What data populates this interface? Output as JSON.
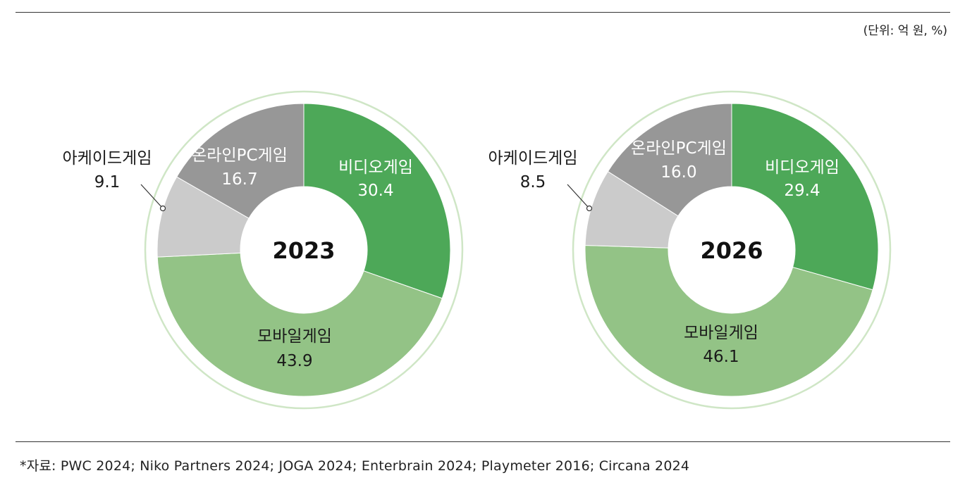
{
  "unit_note": "(단위: 억 원, %)",
  "source_note": "*자료: PWC 2024; Niko Partners 2024; JOGA 2024; Enterbrain 2024; Playmeter 2016; Circana 2024",
  "colors": {
    "video": "#4da858",
    "mobile": "#93c386",
    "arcade": "#cbcbcb",
    "online_pc": "#979797",
    "ring": "#cfe6c6",
    "label_dark": "#1a1a1a",
    "label_light": "#ffffff"
  },
  "chart_data": [
    {
      "type": "pie",
      "donut": true,
      "center_label": "2023",
      "slices": [
        {
          "key": "video",
          "label": "비디오게임",
          "value": 30.4
        },
        {
          "key": "mobile",
          "label": "모바일게임",
          "value": 43.9
        },
        {
          "key": "arcade",
          "label": "아케이드게임",
          "value": 9.1
        },
        {
          "key": "online_pc",
          "label": "온라인PC게임",
          "value": 16.7
        }
      ]
    },
    {
      "type": "pie",
      "donut": true,
      "center_label": "2026",
      "slices": [
        {
          "key": "video",
          "label": "비디오게임",
          "value": 29.4
        },
        {
          "key": "mobile",
          "label": "모바일게임",
          "value": 46.1
        },
        {
          "key": "arcade",
          "label": "아케이드게임",
          "value": 8.5
        },
        {
          "key": "online_pc",
          "label": "온라인PC게임",
          "value": 16.0
        }
      ]
    }
  ]
}
